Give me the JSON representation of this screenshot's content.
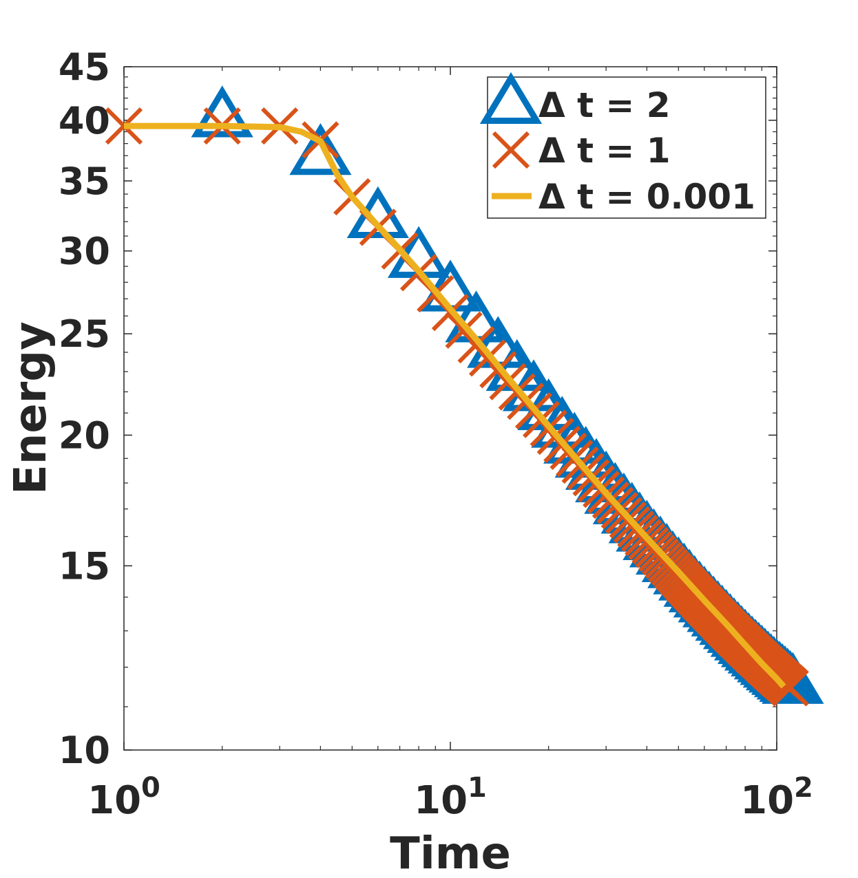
{
  "chart_data": {
    "type": "line",
    "xscale": "log",
    "yscale": "log",
    "xlim": [
      1,
      100
    ],
    "ylim": [
      10,
      45
    ],
    "xlabel": "Time",
    "ylabel": "Energy",
    "xticks": [
      {
        "value": 1,
        "base": "10",
        "exp": "0"
      },
      {
        "value": 10,
        "base": "10",
        "exp": "1"
      },
      {
        "value": 100,
        "base": "10",
        "exp": "2"
      }
    ],
    "yticks": [
      {
        "value": 10,
        "label": "10"
      },
      {
        "value": 15,
        "label": "15"
      },
      {
        "value": 20,
        "label": "20"
      },
      {
        "value": 25,
        "label": "25"
      },
      {
        "value": 30,
        "label": "30"
      },
      {
        "value": 35,
        "label": "35"
      },
      {
        "value": 40,
        "label": "40"
      },
      {
        "value": 45,
        "label": "45"
      }
    ],
    "legend_position": "top-right",
    "series": [
      {
        "name": "Δ t = 2",
        "marker": "triangle",
        "color": "#0072BD",
        "x": [
          2,
          4,
          6,
          8,
          10,
          12,
          14,
          16,
          18,
          20,
          22,
          24,
          26,
          28,
          30,
          32,
          34,
          36,
          38,
          40,
          42,
          44,
          46,
          48,
          50,
          52,
          54,
          56,
          58,
          60,
          62,
          64,
          66,
          68,
          70,
          72,
          74,
          76,
          78,
          80,
          82,
          84,
          86,
          88,
          90,
          92,
          94,
          96,
          98,
          100,
          102,
          104,
          106,
          108,
          110,
          112
        ],
        "y": [
          40.2,
          37.0,
          32.2,
          29.5,
          27.4,
          25.6,
          24.2,
          23.0,
          22.0,
          21.1,
          20.3,
          19.6,
          19.0,
          18.5,
          18.0,
          17.55,
          17.15,
          16.8,
          16.45,
          16.15,
          15.85,
          15.6,
          15.35,
          15.1,
          14.9,
          14.7,
          14.5,
          14.3,
          14.13,
          13.97,
          13.82,
          13.67,
          13.53,
          13.4,
          13.27,
          13.15,
          13.03,
          12.92,
          12.81,
          12.71,
          12.61,
          12.52,
          12.43,
          12.35,
          12.27,
          12.19,
          12.11,
          12.04,
          11.97,
          11.9,
          11.84,
          11.78,
          11.72,
          11.66,
          11.6,
          11.55
        ]
      },
      {
        "name": "Δ t = 1",
        "marker": "x",
        "color": "#D95319",
        "x": [
          1,
          2,
          3,
          4,
          5,
          6,
          7,
          8,
          9,
          10,
          11,
          12,
          13,
          14,
          15,
          16,
          17,
          18,
          19,
          20,
          21,
          22,
          23,
          24,
          25,
          26,
          27,
          28,
          29,
          30,
          31,
          32,
          33,
          34,
          35,
          36,
          37,
          38,
          39,
          40,
          41,
          42,
          43,
          44,
          45,
          46,
          47,
          48,
          49,
          50,
          51,
          52,
          53,
          54,
          55,
          56,
          57,
          58,
          59,
          60,
          61,
          62,
          63,
          64,
          65,
          66,
          67,
          68,
          69,
          70,
          71,
          72,
          73,
          74,
          75,
          76,
          77,
          78,
          79,
          80,
          81,
          82,
          83,
          84,
          85,
          86,
          87,
          88,
          89,
          90,
          91,
          92,
          93,
          94,
          95,
          96,
          97,
          98,
          99,
          100,
          101,
          102,
          103,
          104,
          105,
          106,
          107,
          108,
          109,
          110
        ],
        "y": [
          39.5,
          39.5,
          39.5,
          38.3,
          33.8,
          31.6,
          30.0,
          28.6,
          27.3,
          26.2,
          25.2,
          24.4,
          23.7,
          23.1,
          22.5,
          22.0,
          21.55,
          21.1,
          20.7,
          20.3,
          19.95,
          19.6,
          19.3,
          19.0,
          18.72,
          18.46,
          18.21,
          17.97,
          17.75,
          17.53,
          17.33,
          17.13,
          16.94,
          16.76,
          16.59,
          16.42,
          16.26,
          16.11,
          15.96,
          15.82,
          15.68,
          15.55,
          15.42,
          15.3,
          15.18,
          15.06,
          14.95,
          14.84,
          14.74,
          14.64,
          14.54,
          14.44,
          14.35,
          14.26,
          14.17,
          14.09,
          14.0,
          13.92,
          13.84,
          13.77,
          13.69,
          13.62,
          13.55,
          13.48,
          13.41,
          13.35,
          13.28,
          13.22,
          13.16,
          13.1,
          13.04,
          12.98,
          12.93,
          12.87,
          12.82,
          12.77,
          12.72,
          12.67,
          12.62,
          12.57,
          12.52,
          12.48,
          12.43,
          12.39,
          12.34,
          12.3,
          12.26,
          12.22,
          12.18,
          12.14,
          12.1,
          12.06,
          12.02,
          11.99,
          11.95,
          11.91,
          11.88,
          11.84,
          11.81,
          11.78,
          11.74,
          11.71,
          11.68,
          11.65,
          11.62,
          11.59,
          11.56,
          11.53,
          11.5,
          11.47
        ]
      },
      {
        "name": "Δ t = 0.001",
        "marker": "line",
        "color": "#EDB120",
        "x": [
          1,
          2,
          3,
          3.5,
          4,
          4.5,
          5,
          6,
          7,
          8,
          10,
          12,
          15,
          20,
          25,
          30,
          40,
          50,
          60,
          70,
          80,
          90,
          100,
          105
        ],
        "y": [
          39.5,
          39.5,
          39.4,
          39.0,
          38.2,
          35.5,
          33.8,
          31.7,
          30.1,
          28.7,
          26.4,
          24.7,
          22.7,
          20.4,
          18.8,
          17.6,
          15.95,
          14.8,
          13.9,
          13.2,
          12.6,
          12.1,
          11.7,
          11.5
        ]
      }
    ]
  }
}
